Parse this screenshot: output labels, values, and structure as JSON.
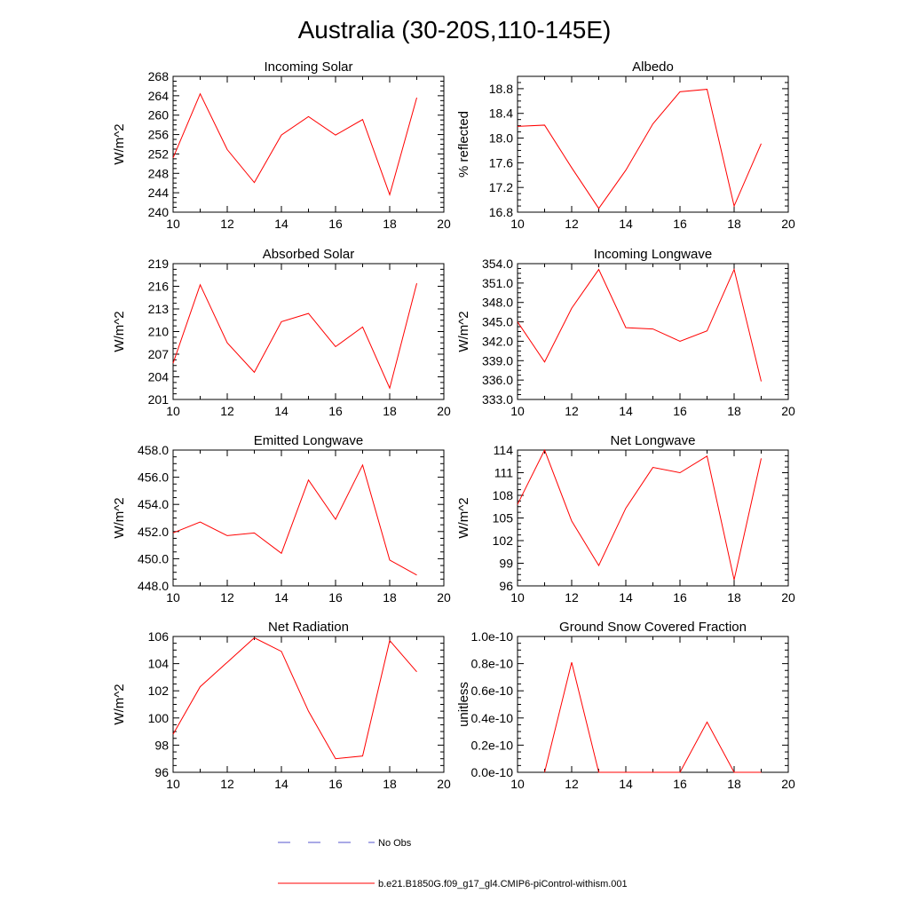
{
  "title": "Australia (30-20S,110-145E)",
  "colors": {
    "model": "#ff0000",
    "obs": "#5555cc",
    "axis": "#000000"
  },
  "legend": {
    "obs_label": "No Obs",
    "model_label": "b.e21.B1850G.f09_g17_gl4.CMIP6-piControl-withism.001"
  },
  "chart_data": [
    {
      "type": "line",
      "title": "Incoming Solar",
      "ylabel": "W/m^2",
      "xlim": [
        10,
        20
      ],
      "ylim": [
        240,
        268
      ],
      "xticks": [
        10,
        12,
        14,
        16,
        18,
        20
      ],
      "yticks": [
        240,
        244,
        248,
        252,
        256,
        260,
        264,
        268
      ],
      "ytick_labels": [
        "240",
        "244",
        "248",
        "252",
        "256",
        "260",
        "264",
        "268"
      ],
      "x": [
        10,
        11,
        12,
        13,
        14,
        15,
        16,
        17,
        18,
        19
      ],
      "series": [
        {
          "values": [
            251.2,
            264.4,
            252.9,
            246.1,
            255.9,
            259.7,
            255.9,
            259.1,
            243.6,
            263.6
          ]
        }
      ]
    },
    {
      "type": "line",
      "title": "Albedo",
      "ylabel": "% reflected",
      "xlim": [
        10,
        20
      ],
      "ylim": [
        16.8,
        19.0
      ],
      "xticks": [
        10,
        12,
        14,
        16,
        18,
        20
      ],
      "yticks": [
        16.8,
        17.2,
        17.6,
        18.0,
        18.4,
        18.8
      ],
      "ytick_labels": [
        "16.8",
        "17.2",
        "17.6",
        "18.0",
        "18.4",
        "18.8"
      ],
      "x": [
        10,
        11,
        12,
        13,
        14,
        15,
        16,
        17,
        18,
        19
      ],
      "series": [
        {
          "values": [
            18.19,
            18.21,
            17.52,
            16.86,
            17.48,
            18.23,
            18.75,
            18.79,
            16.9,
            17.91
          ]
        }
      ]
    },
    {
      "type": "line",
      "title": "Absorbed Solar",
      "ylabel": "W/m^2",
      "xlim": [
        10,
        20
      ],
      "ylim": [
        201,
        219
      ],
      "xticks": [
        10,
        12,
        14,
        16,
        18,
        20
      ],
      "yticks": [
        201,
        204,
        207,
        210,
        213,
        216,
        219
      ],
      "ytick_labels": [
        "201",
        "204",
        "207",
        "210",
        "213",
        "216",
        "219"
      ],
      "x": [
        10,
        11,
        12,
        13,
        14,
        15,
        16,
        17,
        18,
        19
      ],
      "series": [
        {
          "values": [
            205.8,
            216.2,
            208.5,
            204.6,
            211.3,
            212.4,
            208.0,
            210.6,
            202.5,
            216.4
          ]
        }
      ]
    },
    {
      "type": "line",
      "title": "Incoming Longwave",
      "ylabel": "W/m^2",
      "xlim": [
        10,
        20
      ],
      "ylim": [
        333,
        354
      ],
      "xticks": [
        10,
        12,
        14,
        16,
        18,
        20
      ],
      "yticks": [
        333,
        336,
        339,
        342,
        345,
        348,
        351,
        354
      ],
      "ytick_labels": [
        "333.0",
        "336.0",
        "339.0",
        "342.0",
        "345.0",
        "348.0",
        "351.0",
        "354.0"
      ],
      "x": [
        10,
        11,
        12,
        13,
        14,
        15,
        16,
        17,
        18,
        19
      ],
      "series": [
        {
          "values": [
            345.0,
            338.8,
            347.1,
            353.1,
            344.1,
            343.9,
            342.0,
            343.6,
            353.1,
            335.8
          ]
        }
      ]
    },
    {
      "type": "line",
      "title": "Emitted Longwave",
      "ylabel": "W/m^2",
      "xlim": [
        10,
        20
      ],
      "ylim": [
        448,
        458
      ],
      "xticks": [
        10,
        12,
        14,
        16,
        18,
        20
      ],
      "yticks": [
        448,
        450,
        452,
        454,
        456,
        458
      ],
      "ytick_labels": [
        "448.0",
        "450.0",
        "452.0",
        "454.0",
        "456.0",
        "458.0"
      ],
      "x": [
        10,
        11,
        12,
        13,
        14,
        15,
        16,
        17,
        18,
        19
      ],
      "series": [
        {
          "values": [
            451.9,
            452.7,
            451.7,
            451.9,
            450.4,
            455.8,
            452.9,
            456.9,
            449.9,
            448.8
          ]
        }
      ]
    },
    {
      "type": "line",
      "title": "Net Longwave",
      "ylabel": "W/m^2",
      "xlim": [
        10,
        20
      ],
      "ylim": [
        96,
        114
      ],
      "xticks": [
        10,
        12,
        14,
        16,
        18,
        20
      ],
      "yticks": [
        96,
        99,
        102,
        105,
        108,
        111,
        114
      ],
      "ytick_labels": [
        "96",
        "99",
        "102",
        "105",
        "108",
        "111",
        "114"
      ],
      "x": [
        10,
        11,
        12,
        13,
        14,
        15,
        16,
        17,
        18,
        19
      ],
      "series": [
        {
          "values": [
            106.8,
            114.0,
            104.6,
            98.7,
            106.3,
            111.7,
            111.0,
            113.2,
            96.8,
            112.9
          ]
        }
      ]
    },
    {
      "type": "line",
      "title": "Net Radiation",
      "ylabel": "W/m^2",
      "xlim": [
        10,
        20
      ],
      "ylim": [
        96,
        106
      ],
      "xticks": [
        10,
        12,
        14,
        16,
        18,
        20
      ],
      "yticks": [
        96,
        98,
        100,
        102,
        104,
        106
      ],
      "ytick_labels": [
        "96",
        "98",
        "100",
        "102",
        "104",
        "106"
      ],
      "x": [
        10,
        11,
        12,
        13,
        14,
        15,
        16,
        17,
        18,
        19
      ],
      "series": [
        {
          "values": [
            98.8,
            102.3,
            104.1,
            105.9,
            104.9,
            100.5,
            97.0,
            97.2,
            105.7,
            103.4
          ]
        }
      ]
    },
    {
      "type": "line",
      "title": "Ground Snow Covered Fraction",
      "ylabel": "unitless",
      "xlim": [
        10,
        20
      ],
      "ylim": [
        0,
        1e-10
      ],
      "xticks": [
        10,
        12,
        14,
        16,
        18,
        20
      ],
      "yticks": [
        0,
        2e-11,
        4e-11,
        6e-11,
        8e-11,
        1e-10
      ],
      "ytick_labels": [
        "0.0e-10",
        "0.2e-10",
        "0.4e-10",
        "0.6e-10",
        "0.8e-10",
        "1.0e-10"
      ],
      "x": [
        11,
        12,
        13,
        14,
        15,
        16,
        17,
        18,
        19
      ],
      "series": [
        {
          "values": [
            0,
            8.1e-11,
            0,
            0,
            0,
            0,
            3.7e-11,
            0,
            0
          ]
        }
      ]
    }
  ]
}
